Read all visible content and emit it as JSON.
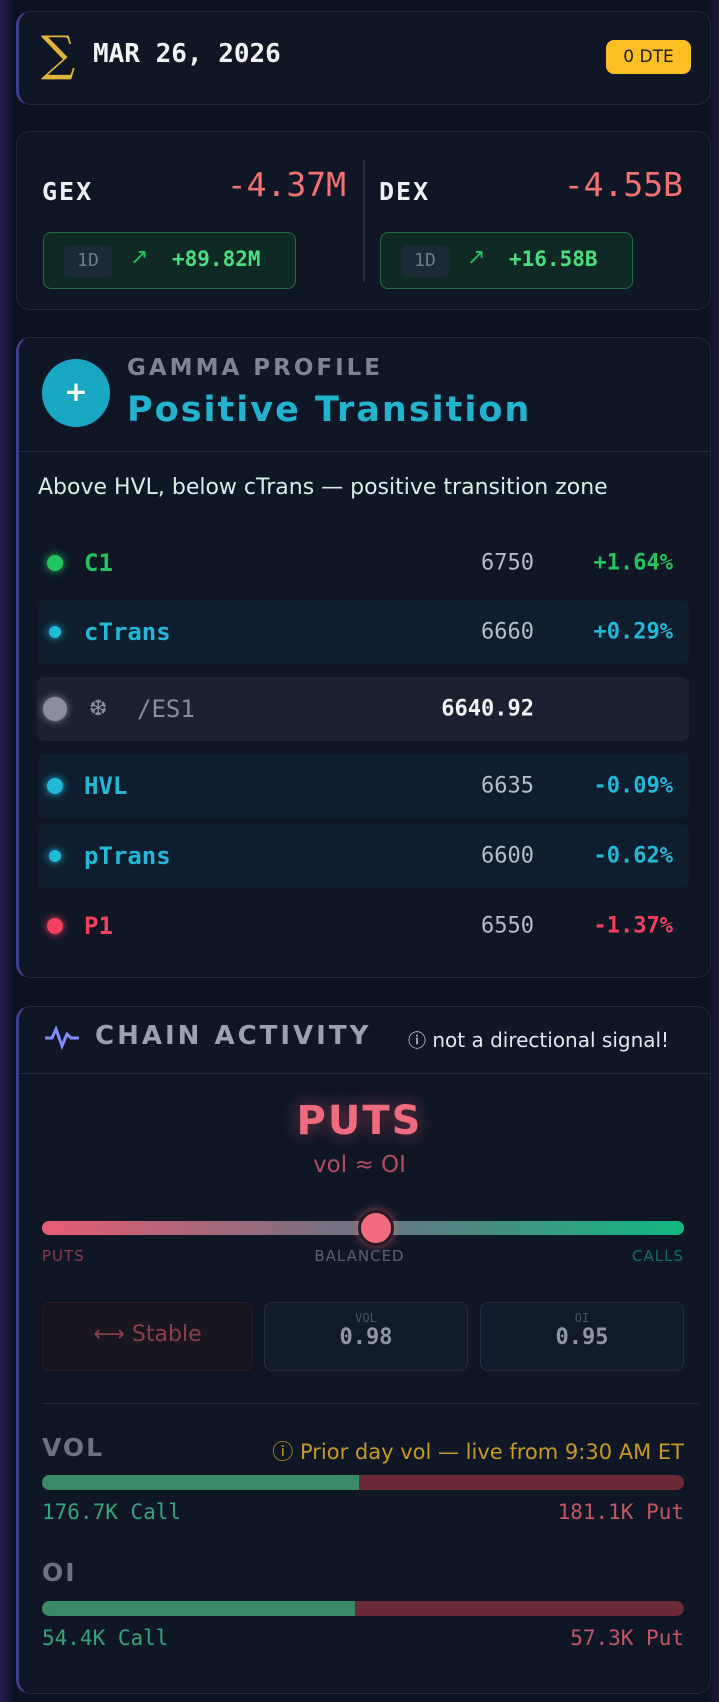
{
  "header": {
    "date": "MAR 26, 2026",
    "badge": "0 DTE"
  },
  "metrics": [
    {
      "label": "GEX",
      "value": "-4.37M",
      "period": "1D",
      "change": "+89.82M"
    },
    {
      "label": "DEX",
      "value": "-4.55B",
      "period": "1D",
      "change": "+16.58B"
    }
  ],
  "gamma_profile": {
    "label": "GAMMA PROFILE",
    "regime": "Positive Transition",
    "description": "Above HVL, below cTrans — positive transition zone",
    "levels": [
      {
        "name": "C1",
        "value": "6750",
        "change": "+1.64%"
      },
      {
        "name": "cTrans",
        "value": "6660",
        "change": "+0.29%"
      },
      {
        "name": "/ES1",
        "value": "6640.92"
      },
      {
        "name": "HVL",
        "value": "6635",
        "change": "-0.09%"
      },
      {
        "name": "pTrans",
        "value": "6600",
        "change": "-0.62%"
      },
      {
        "name": "P1",
        "value": "6550",
        "change": "-1.37%"
      }
    ]
  },
  "chain_activity": {
    "title": "CHAIN ACTIVITY",
    "note": "not a directional signal!",
    "bias": "PUTS",
    "bias_detail": "vol ≈ OI",
    "scale": [
      "PUTS",
      "BALANCED",
      "CALLS"
    ],
    "trend": "Stable",
    "stats": [
      {
        "label": "VOL",
        "value": "0.98"
      },
      {
        "label": "OI",
        "value": "0.95"
      }
    ],
    "volume": {
      "label": "VOL",
      "note": "Prior day vol — live from 9:30 AM ET",
      "call": "176.7K Call",
      "put": "181.1K Put"
    },
    "open_interest": {
      "label": "OI",
      "call": "54.4K Call",
      "put": "57.3K Put"
    }
  }
}
